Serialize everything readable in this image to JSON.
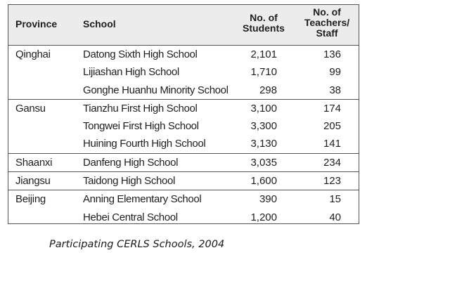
{
  "table": {
    "headers": {
      "province": "Province",
      "school": "School",
      "students": "No. of\nStudents",
      "staff": "No. of\nTeachers/\nStaff"
    },
    "groups": [
      {
        "province": "Qinghai",
        "rows": [
          {
            "school": "Datong Sixth High School",
            "students": "2,101",
            "staff": "136"
          },
          {
            "school": "Lijiashan High School",
            "students": "1,710",
            "staff": "99"
          },
          {
            "school": "Gonghe Huanhu Minority School",
            "students": "298",
            "staff": "38"
          }
        ]
      },
      {
        "province": "Gansu",
        "rows": [
          {
            "school": "Tianzhu First High School",
            "students": "3,100",
            "staff": "174"
          },
          {
            "school": "Tongwei First High School",
            "students": "3,300",
            "staff": "205"
          },
          {
            "school": "Huining Fourth High School",
            "students": "3,130",
            "staff": "141"
          }
        ]
      },
      {
        "province": "Shaanxi",
        "rows": [
          {
            "school": "Danfeng High School",
            "students": "3,035",
            "staff": "234"
          }
        ]
      },
      {
        "province": "Jiangsu",
        "rows": [
          {
            "school": "Taidong High School",
            "students": "1,600",
            "staff": "123"
          }
        ]
      },
      {
        "province": "Beijing",
        "rows": [
          {
            "school": "Anning Elementary School",
            "students": "390",
            "staff": "15"
          },
          {
            "school": "Hebei Central School",
            "students": "1,200",
            "staff": "40"
          }
        ]
      }
    ]
  },
  "caption": "Participating CERLS Schools, 2004"
}
